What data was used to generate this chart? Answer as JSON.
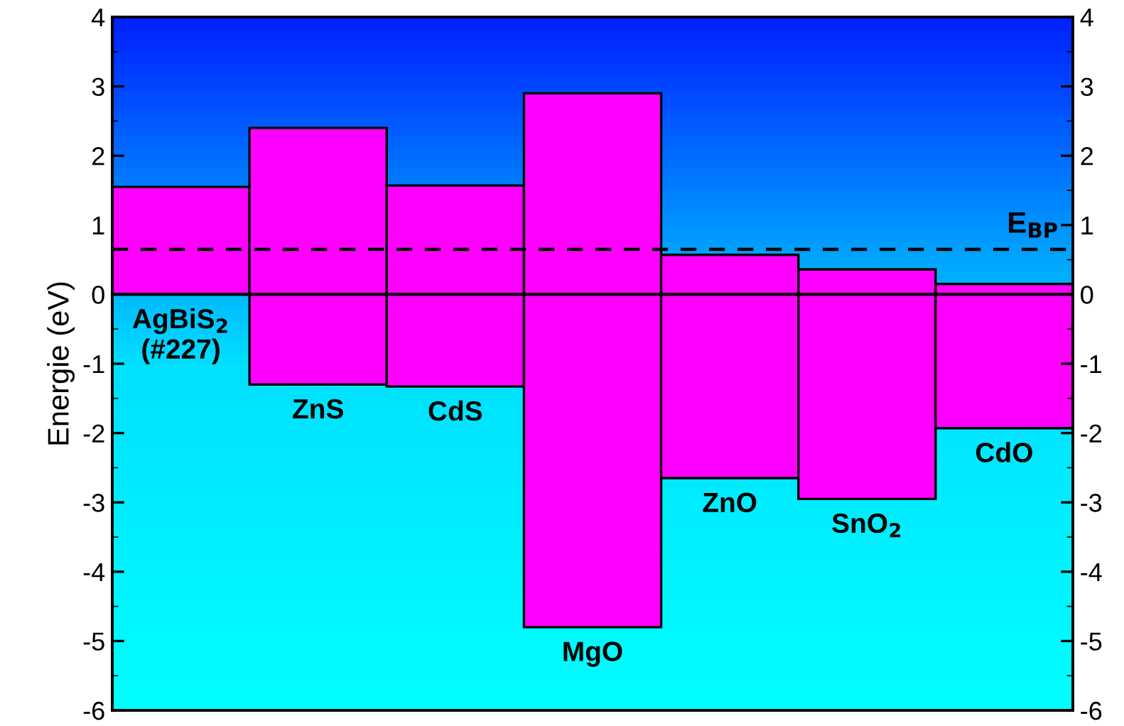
{
  "chart_data": {
    "type": "bar",
    "ylabel": "Energie (eV)",
    "categories": [
      "AgBiS$_{2}$\n(#227)",
      "ZnS",
      "CdS",
      "MgO",
      "ZnO",
      "SnO$_{2}$",
      "CdO"
    ],
    "values": [
      1.55,
      3.7,
      2.9,
      7.7,
      3.22,
      3.31,
      2.08
    ],
    "base": [
      0,
      -1.3,
      -1.33,
      -4.8,
      -2.65,
      -2.95,
      -1.93
    ],
    "color": "#ff00ff",
    "ylim": [
      -6,
      4
    ],
    "yticks": [
      -6,
      -5,
      -4,
      -3,
      -2,
      -1,
      0,
      1,
      2,
      3,
      4
    ],
    "y2lim": [
      -6,
      4
    ],
    "y2ticks": [
      -6,
      -5,
      -4,
      -3,
      -2,
      -1,
      0,
      1,
      2,
      3,
      4
    ],
    "ref_lines": [
      {
        "axis": "y",
        "value": 0.65,
        "label": "E$_{BP}$",
        "line_style": "dashed",
        "color": "#000000"
      },
      {
        "axis": "y",
        "value": 0,
        "label": null,
        "line_style": "solid",
        "color": "#000000"
      }
    ],
    "grid": false,
    "legend": false
  }
}
